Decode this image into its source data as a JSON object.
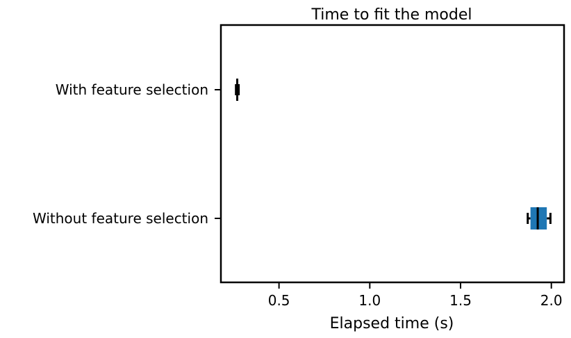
{
  "chart_data": {
    "type": "boxplot",
    "orientation": "horizontal",
    "title": "Time to fit the model",
    "xlabel": "Elapsed time (s)",
    "ylabel": "",
    "xlim": [
      0.18,
      2.07
    ],
    "xticks": [
      "0.5",
      "1.0",
      "1.5",
      "2.0"
    ],
    "xtick_values": [
      0.5,
      1.0,
      1.5,
      2.0
    ],
    "categories": [
      "With feature selection",
      "Without feature selection"
    ],
    "boxes": [
      {
        "whisker_low": 0.263,
        "q1": 0.268,
        "median": 0.27,
        "q3": 0.273,
        "whisker_high": 0.278
      },
      {
        "whisker_low": 1.87,
        "q1": 1.885,
        "median": 1.925,
        "q3": 1.975,
        "whisker_high": 1.995
      }
    ],
    "box_color": "#1f77b4",
    "grid": false,
    "legend": "none"
  }
}
